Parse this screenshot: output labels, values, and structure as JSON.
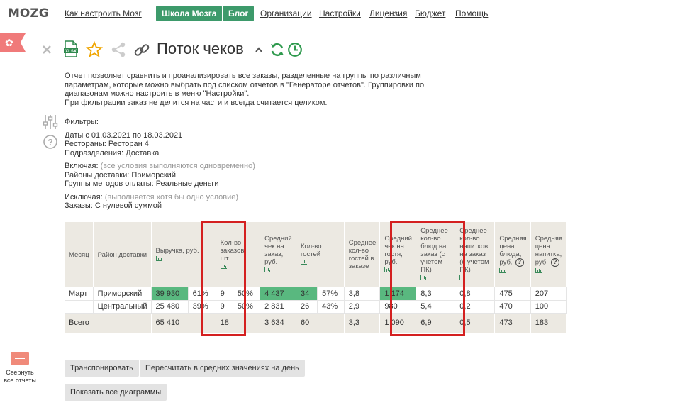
{
  "nav": {
    "logo": "MOZG",
    "links": [
      "Как настроить Мозг",
      "Организации",
      "Настройки",
      "Лицензия",
      "Бюджет",
      "Помощь"
    ],
    "buttons": [
      "Школа Мозга",
      "Блог"
    ]
  },
  "report": {
    "title": "Поток чеков",
    "description": [
      "Отчет позволяет сравнить и проанализировать все заказы, разделенные на группы по различным",
      "параметрам, которые можно выбрать под списком отчетов в \"Генераторе отчетов\". Группировки по",
      "диапазонам можно настроить в меню \"Настройки\".",
      "При фильтрации заказ не делится на части и всегда считается целиком."
    ]
  },
  "filters": {
    "heading": "Фильтры:",
    "dates": "Даты с 01.03.2021 по 18.03.2021",
    "restaurants_label": "Рестораны:",
    "restaurants_value": "Ресторан 4",
    "divisions_label": "Подразделения:",
    "divisions_value": "Доставка",
    "include_label": "Включая:",
    "include_note": "(все условия выполняются одновременно)",
    "districts_label": "Районы доставки:",
    "districts_value": "Приморский",
    "payment_label": "Группы методов оплаты:",
    "payment_value": "Реальные деньги",
    "exclude_label": "Исключая:",
    "exclude_note": "(выполняется хотя бы одно условие)",
    "orders_label": "Заказы:",
    "orders_value": "С нулевой суммой"
  },
  "table": {
    "headers": {
      "month": "Месяц",
      "district": "Район доставки",
      "revenue": "Выручка, руб.",
      "orders": "Кол-во заказов, шт.",
      "avg_check": "Средний чек на заказ, руб.",
      "guests": "Кол-во гостей",
      "avg_guests": "Среднее кол-во гостей в заказе",
      "avg_check_guest": "Средний чек на гостя, руб.",
      "avg_dishes": "Среднее кол-во блюд на заказ (с учетом ПК)",
      "avg_drinks": "Среднее кол-во напитков на заказ (с учетом ПК)",
      "avg_dish_price": "Средняя цена блюда, руб.",
      "avg_drink_price": "Средняя цена напитка, руб."
    },
    "rows": [
      {
        "month": "Март",
        "district": "Приморский",
        "revenue": "39 930",
        "revenue_pct": "61%",
        "orders": "9",
        "orders_pct": "50%",
        "avg_check": "4 437",
        "guests": "34",
        "guests_pct": "57%",
        "avg_guests": "3,8",
        "avg_check_guest": "1 174",
        "avg_dishes": "8,3",
        "avg_drinks": "0,8",
        "avg_dish_price": "475",
        "avg_drink_price": "207"
      },
      {
        "month": "",
        "district": "Центральный",
        "revenue": "25 480",
        "revenue_pct": "39%",
        "orders": "9",
        "orders_pct": "50%",
        "avg_check": "2 831",
        "guests": "26",
        "guests_pct": "43%",
        "avg_guests": "2,9",
        "avg_check_guest": "980",
        "avg_dishes": "5,4",
        "avg_drinks": "0,2",
        "avg_dish_price": "470",
        "avg_drink_price": "100"
      }
    ],
    "total": {
      "label": "Всего",
      "revenue": "65 410",
      "orders": "18",
      "avg_check": "3 634",
      "guests": "60",
      "avg_guests": "3,3",
      "avg_check_guest": "1 090",
      "avg_dishes": "6,9",
      "avg_drinks": "0,5",
      "avg_dish_price": "473",
      "avg_drink_price": "183"
    }
  },
  "buttons": {
    "transpose": "Транспонировать",
    "recalc": "Пересчитать в средних значениях на день",
    "show_charts": "Показать все диаграммы"
  },
  "sidebar": {
    "collapse_line1": "Свернуть",
    "collapse_line2": "все отчеты"
  },
  "icons": {
    "close": "close-icon",
    "xlsx": "xlsx-icon",
    "star": "star-icon",
    "share": "share-icon",
    "link": "link-icon",
    "chevron": "chevron-up-icon",
    "refresh": "refresh-icon",
    "clock": "clock-icon",
    "filter": "sliders-icon",
    "help": "help-icon"
  },
  "colors": {
    "brand_green": "#3d9a6b",
    "highlight_green": "#59b87f",
    "header_bg": "#ece9e2",
    "ribbon_red": "#f07a7a",
    "annotation_red": "#d42020"
  }
}
